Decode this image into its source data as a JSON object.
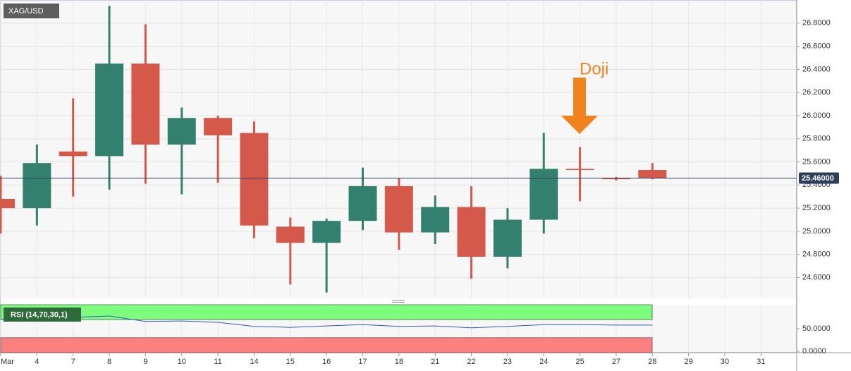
{
  "chart_data": [
    {
      "type": "candlestick",
      "title": "XAG/USD",
      "annotation": "Doji",
      "categories": [
        "Mar",
        "4",
        "7",
        "8",
        "9",
        "10",
        "11",
        "14",
        "15",
        "16",
        "17",
        "18",
        "21",
        "22",
        "23",
        "24",
        "25",
        "27",
        "28",
        "29",
        "30",
        "31"
      ],
      "open": [
        25.28,
        25.2,
        25.69,
        25.65,
        26.45,
        25.75,
        25.98,
        25.85,
        25.04,
        24.9,
        25.09,
        25.39,
        24.99,
        25.21,
        24.78,
        25.1,
        25.54,
        25.46,
        25.53,
        null,
        null,
        null
      ],
      "high": [
        25.48,
        25.75,
        26.15,
        26.95,
        26.79,
        26.07,
        26.0,
        25.95,
        25.12,
        25.11,
        25.55,
        25.46,
        25.31,
        25.39,
        25.2,
        25.85,
        25.73,
        25.47,
        25.59,
        null,
        null,
        null
      ],
      "low": [
        24.98,
        25.05,
        25.3,
        25.36,
        25.41,
        25.32,
        25.42,
        24.94,
        24.54,
        24.47,
        25.01,
        24.84,
        24.89,
        24.59,
        24.68,
        24.98,
        25.26,
        25.44,
        25.45,
        null,
        null,
        null
      ],
      "close": [
        25.2,
        25.59,
        25.65,
        26.45,
        25.75,
        25.98,
        25.83,
        25.05,
        24.9,
        25.09,
        25.39,
        24.99,
        25.21,
        24.78,
        25.1,
        25.54,
        25.53,
        25.45,
        25.46,
        null,
        null,
        null
      ],
      "up_color": "#33806f",
      "down_color": "#d4594a",
      "last_price": {
        "value": 25.46,
        "label": "25.46000"
      },
      "ylim": [
        24.42,
        27.0
      ],
      "yticks": [
        {
          "value": 24.6,
          "label": "24.6000"
        },
        {
          "value": 24.8,
          "label": "24.8000"
        },
        {
          "value": 25.0,
          "label": "25.0000"
        },
        {
          "value": 25.2,
          "label": "25.2000"
        },
        {
          "value": 25.4,
          "label": "25.4000"
        },
        {
          "value": 25.6,
          "label": "25.6000"
        },
        {
          "value": 25.8,
          "label": "25.8000"
        },
        {
          "value": 26.0,
          "label": "26.0000"
        },
        {
          "value": 26.2,
          "label": "26.2000"
        },
        {
          "value": 26.4,
          "label": "26.4000"
        },
        {
          "value": 26.6,
          "label": "26.6000"
        },
        {
          "value": 26.8,
          "label": "26.8000"
        }
      ],
      "grid": true
    },
    {
      "type": "line",
      "title": "RSI (14,70,30,1)",
      "color": "#3355cc",
      "values": [
        70,
        73,
        75,
        78,
        66,
        67,
        64,
        55,
        53,
        56,
        59,
        55,
        56,
        52,
        55,
        59,
        59,
        58,
        58,
        null,
        null,
        null
      ],
      "overbought": 70,
      "oversold": 30,
      "overbought_color": "#7dfc7d",
      "oversold_color": "#fd8080",
      "ylim": [
        -3,
        103
      ],
      "yticks": [
        {
          "value": 0,
          "label": "0.0000"
        },
        {
          "value": 50,
          "label": "50.0000"
        }
      ]
    }
  ]
}
